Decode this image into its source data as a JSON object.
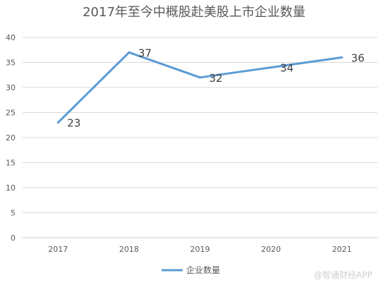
{
  "chart_data": {
    "type": "line",
    "title": "2017年至今中概股赴美股上市企业数量",
    "categories": [
      "2017",
      "2018",
      "2019",
      "2020",
      "2021"
    ],
    "series": [
      {
        "name": "企业数量",
        "values": [
          23,
          37,
          32,
          34,
          36
        ]
      }
    ],
    "ylim": [
      0,
      40
    ],
    "yticks": [
      0,
      5,
      10,
      15,
      20,
      25,
      30,
      35,
      40
    ],
    "grid": true,
    "legend": "bottom",
    "line_color": "#5b9bd5"
  },
  "watermark": "@智通财经APP"
}
